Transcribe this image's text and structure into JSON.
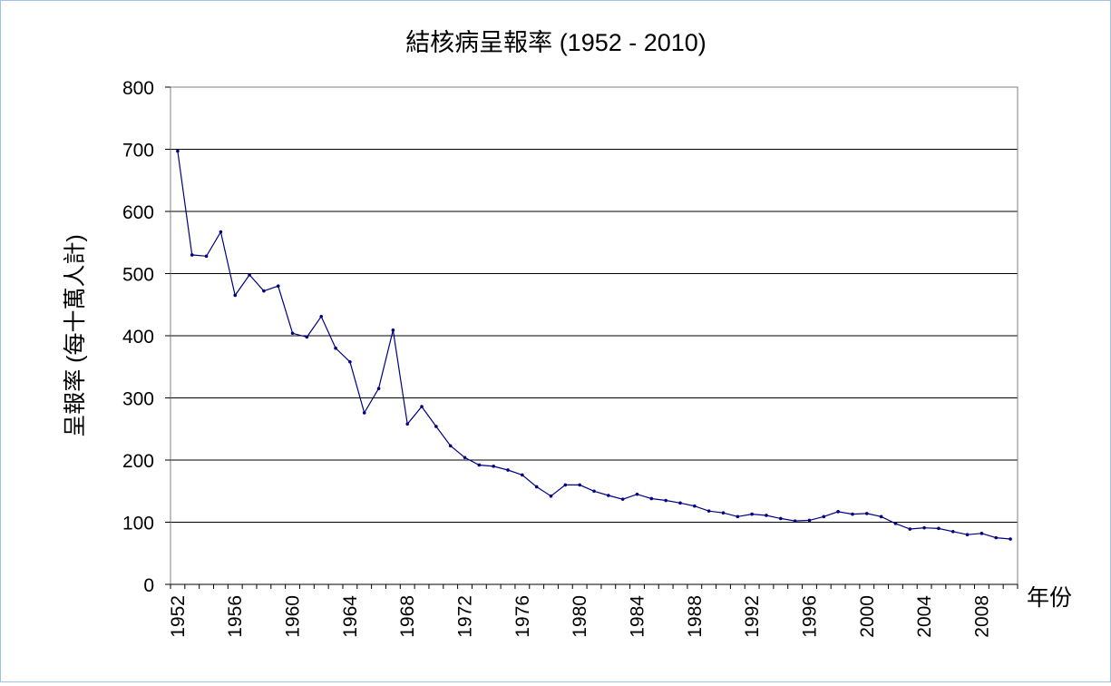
{
  "chart_data": {
    "type": "line",
    "title": "結核病呈報率 (1952 - 2010)",
    "xlabel": "年份",
    "ylabel": "呈報率 (每十萬人計)",
    "ylim": [
      0,
      800
    ],
    "yticks": [
      0,
      100,
      200,
      300,
      400,
      500,
      600,
      700,
      800
    ],
    "xlim": [
      1952,
      2010
    ],
    "xticks": [
      1952,
      1956,
      1960,
      1964,
      1968,
      1972,
      1976,
      1980,
      1984,
      1988,
      1992,
      1996,
      2000,
      2004,
      2008
    ],
    "grid": "horizontal",
    "line_color": "#000080",
    "series": [
      {
        "x": [
          1952,
          1953,
          1954,
          1955,
          1956,
          1957,
          1958,
          1959,
          1960,
          1961,
          1962,
          1963,
          1964,
          1965,
          1966,
          1967,
          1968,
          1969,
          1970,
          1971,
          1972,
          1973,
          1974,
          1975,
          1976,
          1977,
          1978,
          1979,
          1980,
          1981,
          1982,
          1983,
          1984,
          1985,
          1986,
          1987,
          1988,
          1989,
          1990,
          1991,
          1992,
          1993,
          1994,
          1995,
          1996,
          1997,
          1998,
          1999,
          2000,
          2001,
          2002,
          2003,
          2004,
          2005,
          2006,
          2007,
          2008,
          2009,
          2010
        ],
        "values": [
          697,
          530,
          528,
          567,
          465,
          498,
          472,
          480,
          404,
          398,
          431,
          380,
          358,
          276,
          315,
          409,
          258,
          286,
          254,
          223,
          204,
          192,
          190,
          184,
          176,
          157,
          142,
          160,
          160,
          150,
          143,
          137,
          145,
          138,
          135,
          131,
          126,
          118,
          115,
          109,
          113,
          111,
          106,
          102,
          103,
          109,
          117,
          113,
          114,
          109,
          98,
          89,
          91,
          90,
          85,
          80,
          82,
          75,
          73
        ]
      }
    ]
  }
}
